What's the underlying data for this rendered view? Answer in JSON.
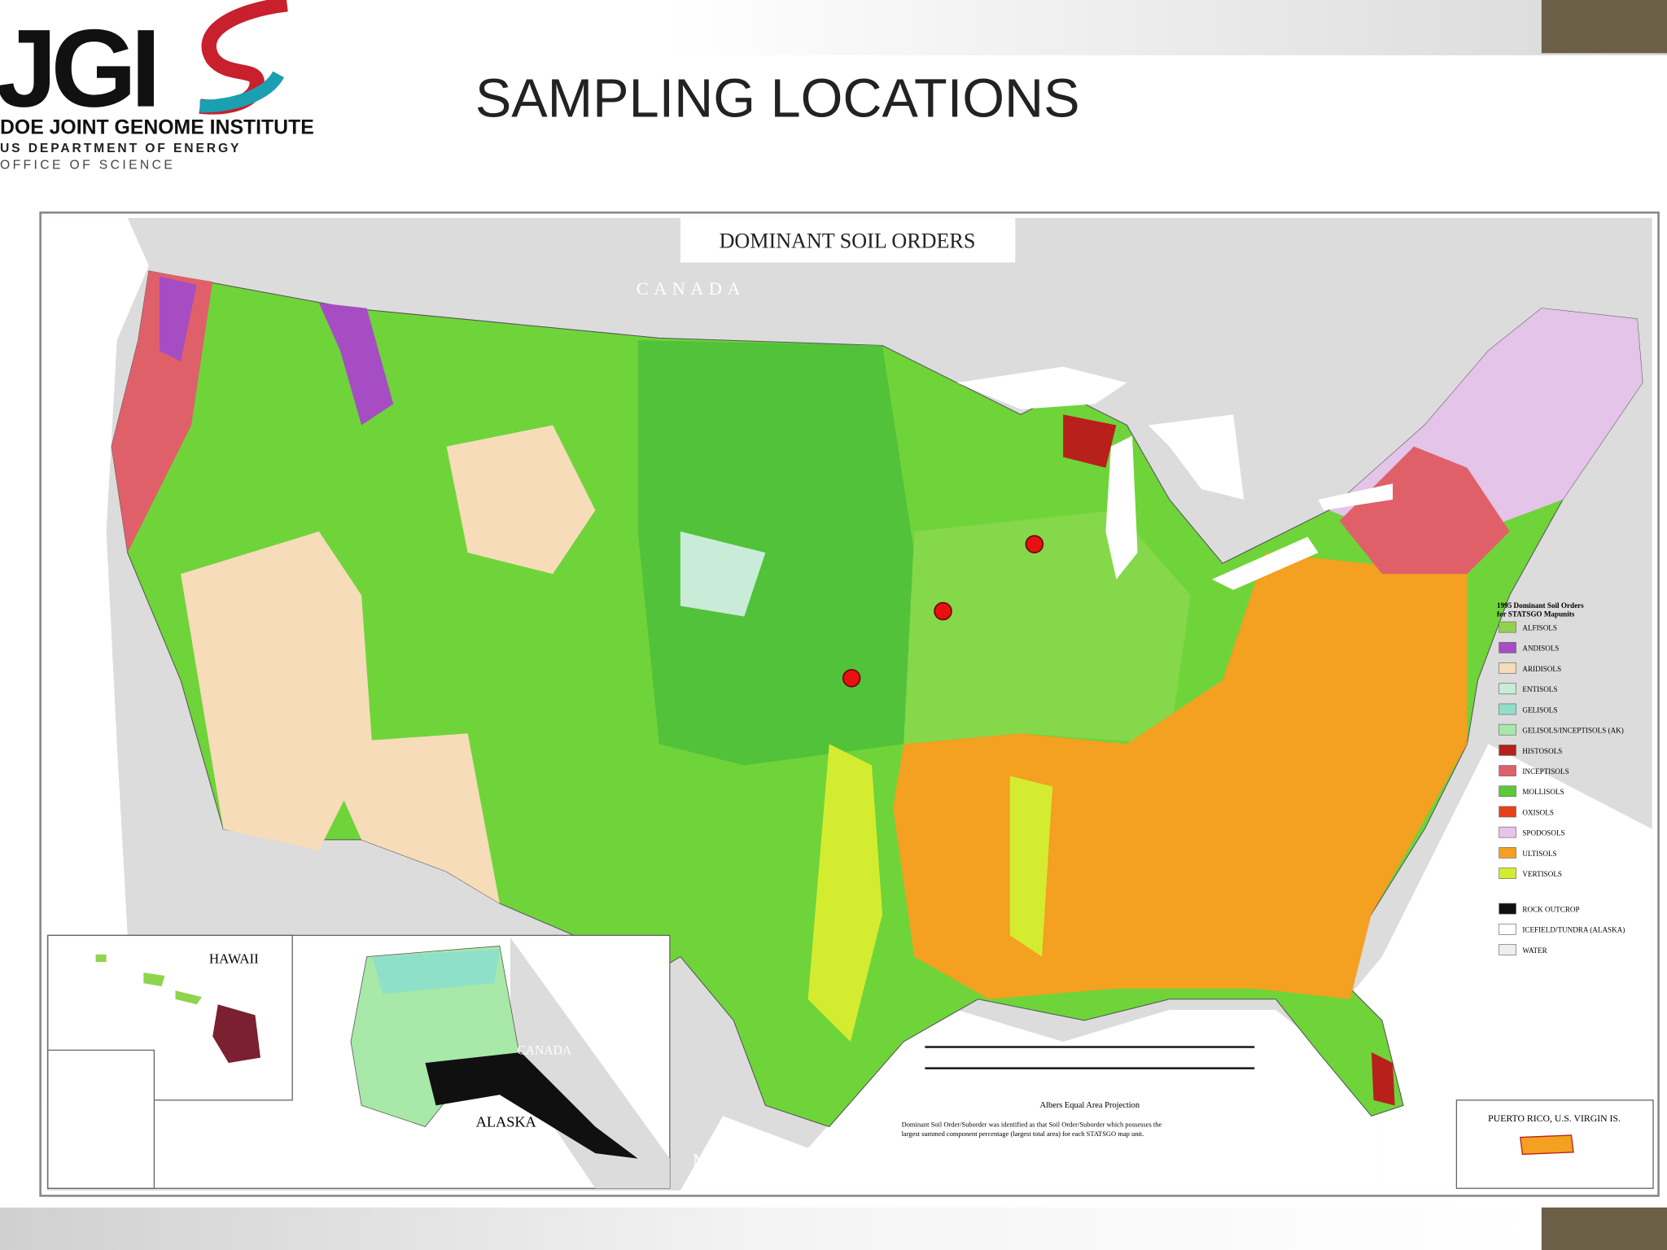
{
  "header": {
    "logo": "JGI",
    "org": "DOE JOINT GENOME INSTITUTE",
    "dept": "US DEPARTMENT OF ENERGY",
    "office": "OFFICE OF SCIENCE"
  },
  "title": "SAMPLING LOCATIONS",
  "map": {
    "title": "DOMINANT SOIL ORDERS",
    "canada": "CANADA",
    "canada_ak": "CANADA",
    "mexico": "MEXICO",
    "hawaii": "HAWAII",
    "alaska": "ALASKA",
    "puerto_rico": "PUERTO RICO, U.S. VIRGIN IS.",
    "projection": "Albers Equal Area Projection",
    "note": [
      "Dominant Soil Order/Suborder was identified as that Soil Order/Suborder which possesses the",
      "largest summed component percentage (largest total area) for each STATSGO map unit."
    ],
    "legend": {
      "title": [
        "1995 Dominant Soil Orders",
        "for STATSGO Mapunits"
      ],
      "items": [
        {
          "label": "ALFISOLS",
          "color": "#8fd44c"
        },
        {
          "label": "ANDISOLS",
          "color": "#a64dc4"
        },
        {
          "label": "ARIDISOLS",
          "color": "#f6dcb8"
        },
        {
          "label": "ENTISOLS",
          "color": "#c8ecd8"
        },
        {
          "label": "GELISOLS",
          "color": "#8fe0c8"
        },
        {
          "label": "GELISOLS/INCEPTISOLS (AK)",
          "color": "#a8e8a8"
        },
        {
          "label": "HISTOSOLS",
          "color": "#b8201c"
        },
        {
          "label": "INCEPTISOLS",
          "color": "#e0606a"
        },
        {
          "label": "MOLLISOLS",
          "color": "#5cc83a"
        },
        {
          "label": "OXISOLS",
          "color": "#e8401c"
        },
        {
          "label": "SPODOSOLS",
          "color": "#e4c4e8"
        },
        {
          "label": "ULTISOLS",
          "color": "#f4a020"
        },
        {
          "label": "VERTISOLS",
          "color": "#d4ec30"
        },
        {
          "label": "ROCK OUTCROP",
          "color": "#101010"
        },
        {
          "label": "ICEFIELD/TUNDRA (ALASKA)",
          "color": "#ffffff"
        },
        {
          "label": "WATER",
          "color": "#eeeeee"
        }
      ]
    }
  }
}
